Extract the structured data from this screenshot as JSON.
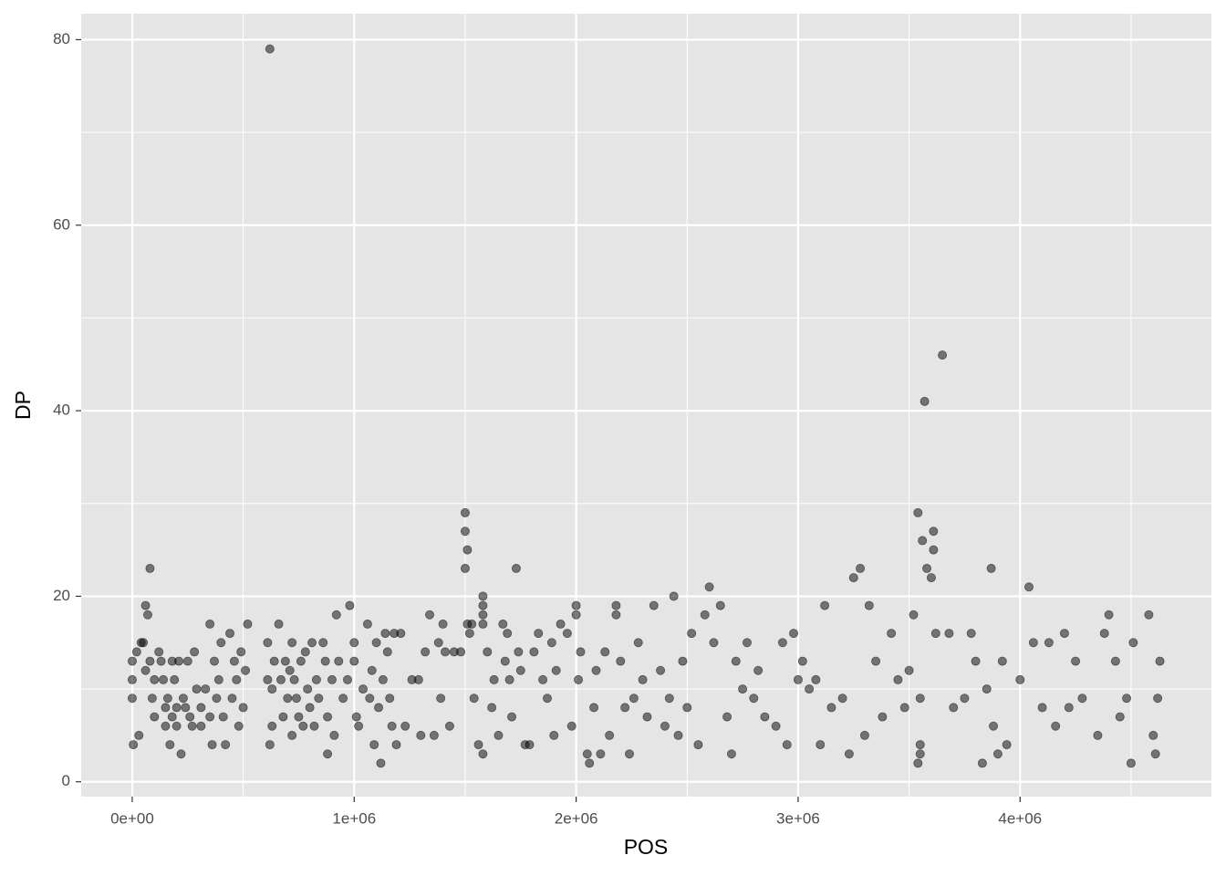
{
  "chart_data": {
    "type": "scatter",
    "x_label": "POS",
    "y_label": "DP",
    "color": "#000000",
    "opacity": 0.5,
    "xlim": [
      -230000,
      4862000
    ],
    "ylim": [
      -1.6,
      82.8
    ],
    "xticks": [
      {
        "value": 0,
        "label": "0e+00"
      },
      {
        "value": 1000000,
        "label": "1e+06"
      },
      {
        "value": 2000000,
        "label": "2e+06"
      },
      {
        "value": 3000000,
        "label": "3e+06"
      },
      {
        "value": 4000000,
        "label": "4e+06"
      }
    ],
    "yticks": [
      0,
      20,
      40,
      60,
      80
    ],
    "x_minor_ticks": [
      500000,
      1500000,
      2500000,
      3500000,
      4500000
    ],
    "y_minor_ticks": [
      10,
      30,
      50,
      70
    ],
    "grid": true,
    "x": [
      0,
      0,
      0,
      5000,
      20000,
      30000,
      40000,
      50000,
      60000,
      60000,
      70000,
      80000,
      80000,
      90000,
      100000,
      100000,
      120000,
      130000,
      140000,
      150000,
      150000,
      160000,
      170000,
      180000,
      180000,
      190000,
      200000,
      200000,
      210000,
      220000,
      230000,
      240000,
      250000,
      260000,
      270000,
      280000,
      290000,
      310000,
      310000,
      330000,
      350000,
      350000,
      360000,
      370000,
      380000,
      390000,
      400000,
      410000,
      420000,
      440000,
      450000,
      460000,
      470000,
      480000,
      490000,
      500000,
      510000,
      520000,
      610000,
      610000,
      620000,
      620000,
      630000,
      630000,
      640000,
      660000,
      670000,
      680000,
      690000,
      700000,
      710000,
      720000,
      720000,
      730000,
      740000,
      750000,
      760000,
      770000,
      780000,
      790000,
      800000,
      810000,
      820000,
      830000,
      840000,
      860000,
      870000,
      880000,
      880000,
      900000,
      910000,
      920000,
      930000,
      950000,
      970000,
      980000,
      1000000,
      1000000,
      1010000,
      1020000,
      1040000,
      1060000,
      1070000,
      1080000,
      1090000,
      1100000,
      1110000,
      1120000,
      1130000,
      1140000,
      1150000,
      1160000,
      1170000,
      1180000,
      1190000,
      1210000,
      1230000,
      1260000,
      1290000,
      1300000,
      1320000,
      1340000,
      1360000,
      1380000,
      1390000,
      1400000,
      1410000,
      1430000,
      1450000,
      1480000,
      1500000,
      1500000,
      1500000,
      1510000,
      1510000,
      1520000,
      1530000,
      1540000,
      1560000,
      1580000,
      1580000,
      1580000,
      1580000,
      1580000,
      1600000,
      1620000,
      1630000,
      1650000,
      1670000,
      1680000,
      1690000,
      1700000,
      1710000,
      1730000,
      1740000,
      1750000,
      1770000,
      1790000,
      1810000,
      1830000,
      1850000,
      1870000,
      1890000,
      1900000,
      1910000,
      1930000,
      1960000,
      1980000,
      2000000,
      2000000,
      2010000,
      2020000,
      2050000,
      2060000,
      2080000,
      2090000,
      2110000,
      2130000,
      2150000,
      2180000,
      2180000,
      2200000,
      2220000,
      2240000,
      2260000,
      2280000,
      2300000,
      2320000,
      2350000,
      2380000,
      2400000,
      2420000,
      2440000,
      2460000,
      2480000,
      2500000,
      2520000,
      2550000,
      2580000,
      2600000,
      2620000,
      2650000,
      2680000,
      2700000,
      2720000,
      2750000,
      2770000,
      2800000,
      2820000,
      2850000,
      2900000,
      2930000,
      2950000,
      2980000,
      3000000,
      3020000,
      3050000,
      3080000,
      3100000,
      3120000,
      3150000,
      3200000,
      3230000,
      3250000,
      3280000,
      3300000,
      3320000,
      3350000,
      3380000,
      3420000,
      3450000,
      3480000,
      3500000,
      3520000,
      3540000,
      3540000,
      3550000,
      3550000,
      3550000,
      3560000,
      3570000,
      3580000,
      3600000,
      3610000,
      3610000,
      3620000,
      3650000,
      3680000,
      3700000,
      3750000,
      3780000,
      3800000,
      3830000,
      3850000,
      3870000,
      3880000,
      3900000,
      3920000,
      3940000,
      4000000,
      4040000,
      4060000,
      4100000,
      4130000,
      4160000,
      4200000,
      4220000,
      4250000,
      4280000,
      4350000,
      4380000,
      4400000,
      4430000,
      4450000,
      4480000,
      4500000,
      4510000,
      4580000,
      4600000,
      4610000,
      4620000,
      4630000
    ],
    "y": [
      13,
      11,
      9,
      4,
      14,
      5,
      15,
      15,
      12,
      19,
      18,
      23,
      13,
      9,
      11,
      7,
      14,
      13,
      11,
      8,
      6,
      9,
      4,
      13,
      7,
      11,
      8,
      6,
      13,
      3,
      9,
      8,
      13,
      7,
      6,
      14,
      10,
      8,
      6,
      10,
      17,
      7,
      4,
      13,
      9,
      11,
      15,
      7,
      4,
      16,
      9,
      13,
      11,
      6,
      14,
      8,
      12,
      17,
      15,
      11,
      79,
      4,
      10,
      6,
      13,
      17,
      11,
      7,
      13,
      9,
      12,
      5,
      15,
      11,
      9,
      7,
      13,
      6,
      14,
      10,
      8,
      15,
      6,
      11,
      9,
      15,
      13,
      7,
      3,
      11,
      5,
      18,
      13,
      9,
      11,
      19,
      15,
      13,
      7,
      6,
      10,
      17,
      9,
      12,
      4,
      15,
      8,
      2,
      11,
      16,
      14,
      9,
      6,
      16,
      4,
      16,
      6,
      11,
      11,
      5,
      14,
      18,
      5,
      15,
      9,
      17,
      14,
      6,
      14,
      14,
      29,
      27,
      23,
      25,
      17,
      16,
      17,
      9,
      4,
      20,
      19,
      18,
      17,
      3,
      14,
      8,
      11,
      5,
      17,
      13,
      16,
      11,
      7,
      23,
      14,
      12,
      4,
      4,
      14,
      16,
      11,
      9,
      15,
      5,
      12,
      17,
      16,
      6,
      18,
      19,
      11,
      14,
      3,
      2,
      8,
      12,
      3,
      14,
      5,
      19,
      18,
      13,
      8,
      3,
      9,
      15,
      11,
      7,
      19,
      12,
      6,
      9,
      20,
      5,
      13,
      8,
      16,
      4,
      18,
      21,
      15,
      19,
      7,
      3,
      13,
      10,
      15,
      9,
      12,
      7,
      6,
      15,
      4,
      16,
      11,
      13,
      10,
      11,
      4,
      19,
      8,
      9,
      3,
      22,
      23,
      5,
      19,
      13,
      7,
      16,
      11,
      8,
      12,
      18,
      29,
      2,
      3,
      4,
      9,
      26,
      41,
      23,
      22,
      25,
      27,
      16,
      46,
      16,
      8,
      9,
      16,
      13,
      2,
      10,
      23,
      6,
      3,
      13,
      4,
      11,
      21,
      15,
      8,
      15,
      6,
      16,
      8,
      13,
      9,
      5,
      16,
      18,
      13,
      7,
      9,
      2,
      15,
      18,
      5,
      3,
      9,
      13
    ]
  }
}
